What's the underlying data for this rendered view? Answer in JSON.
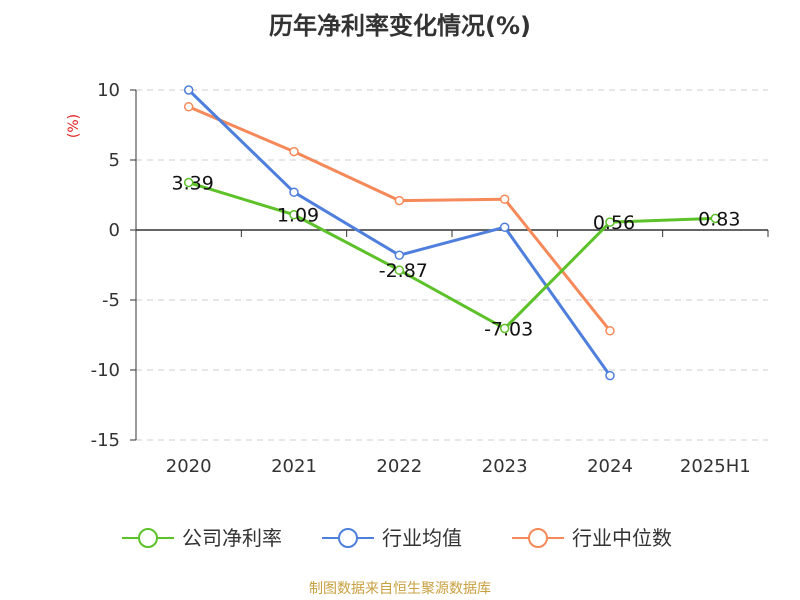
{
  "chart_data": {
    "type": "line",
    "title": "历年净利率变化情况(%)",
    "ylabel": "(%)",
    "xlabel": "",
    "categories": [
      "2020",
      "2021",
      "2022",
      "2023",
      "2024",
      "2025H1"
    ],
    "ylim": [
      -15,
      10
    ],
    "yticks": [
      10,
      5,
      0,
      -5,
      -10,
      -15
    ],
    "grid": true,
    "legend_position": "bottom",
    "series": [
      {
        "name": "公司净利率",
        "color": "#5dc12a",
        "values": [
          3.39,
          1.09,
          -2.87,
          -7.03,
          0.56,
          0.83
        ],
        "labels": [
          "3.39",
          "1.09",
          "-2.87",
          "-7.03",
          "0.56",
          "0.83"
        ]
      },
      {
        "name": "行业均值",
        "color": "#4f7fdc",
        "values": [
          10.0,
          2.7,
          -1.8,
          0.2,
          -10.4,
          null
        ]
      },
      {
        "name": "行业中位数",
        "color": "#f5895a",
        "values": [
          8.8,
          5.6,
          2.1,
          2.2,
          -7.2,
          null
        ]
      }
    ]
  },
  "footer": {
    "source": "制图数据来自恒生聚源数据库"
  }
}
